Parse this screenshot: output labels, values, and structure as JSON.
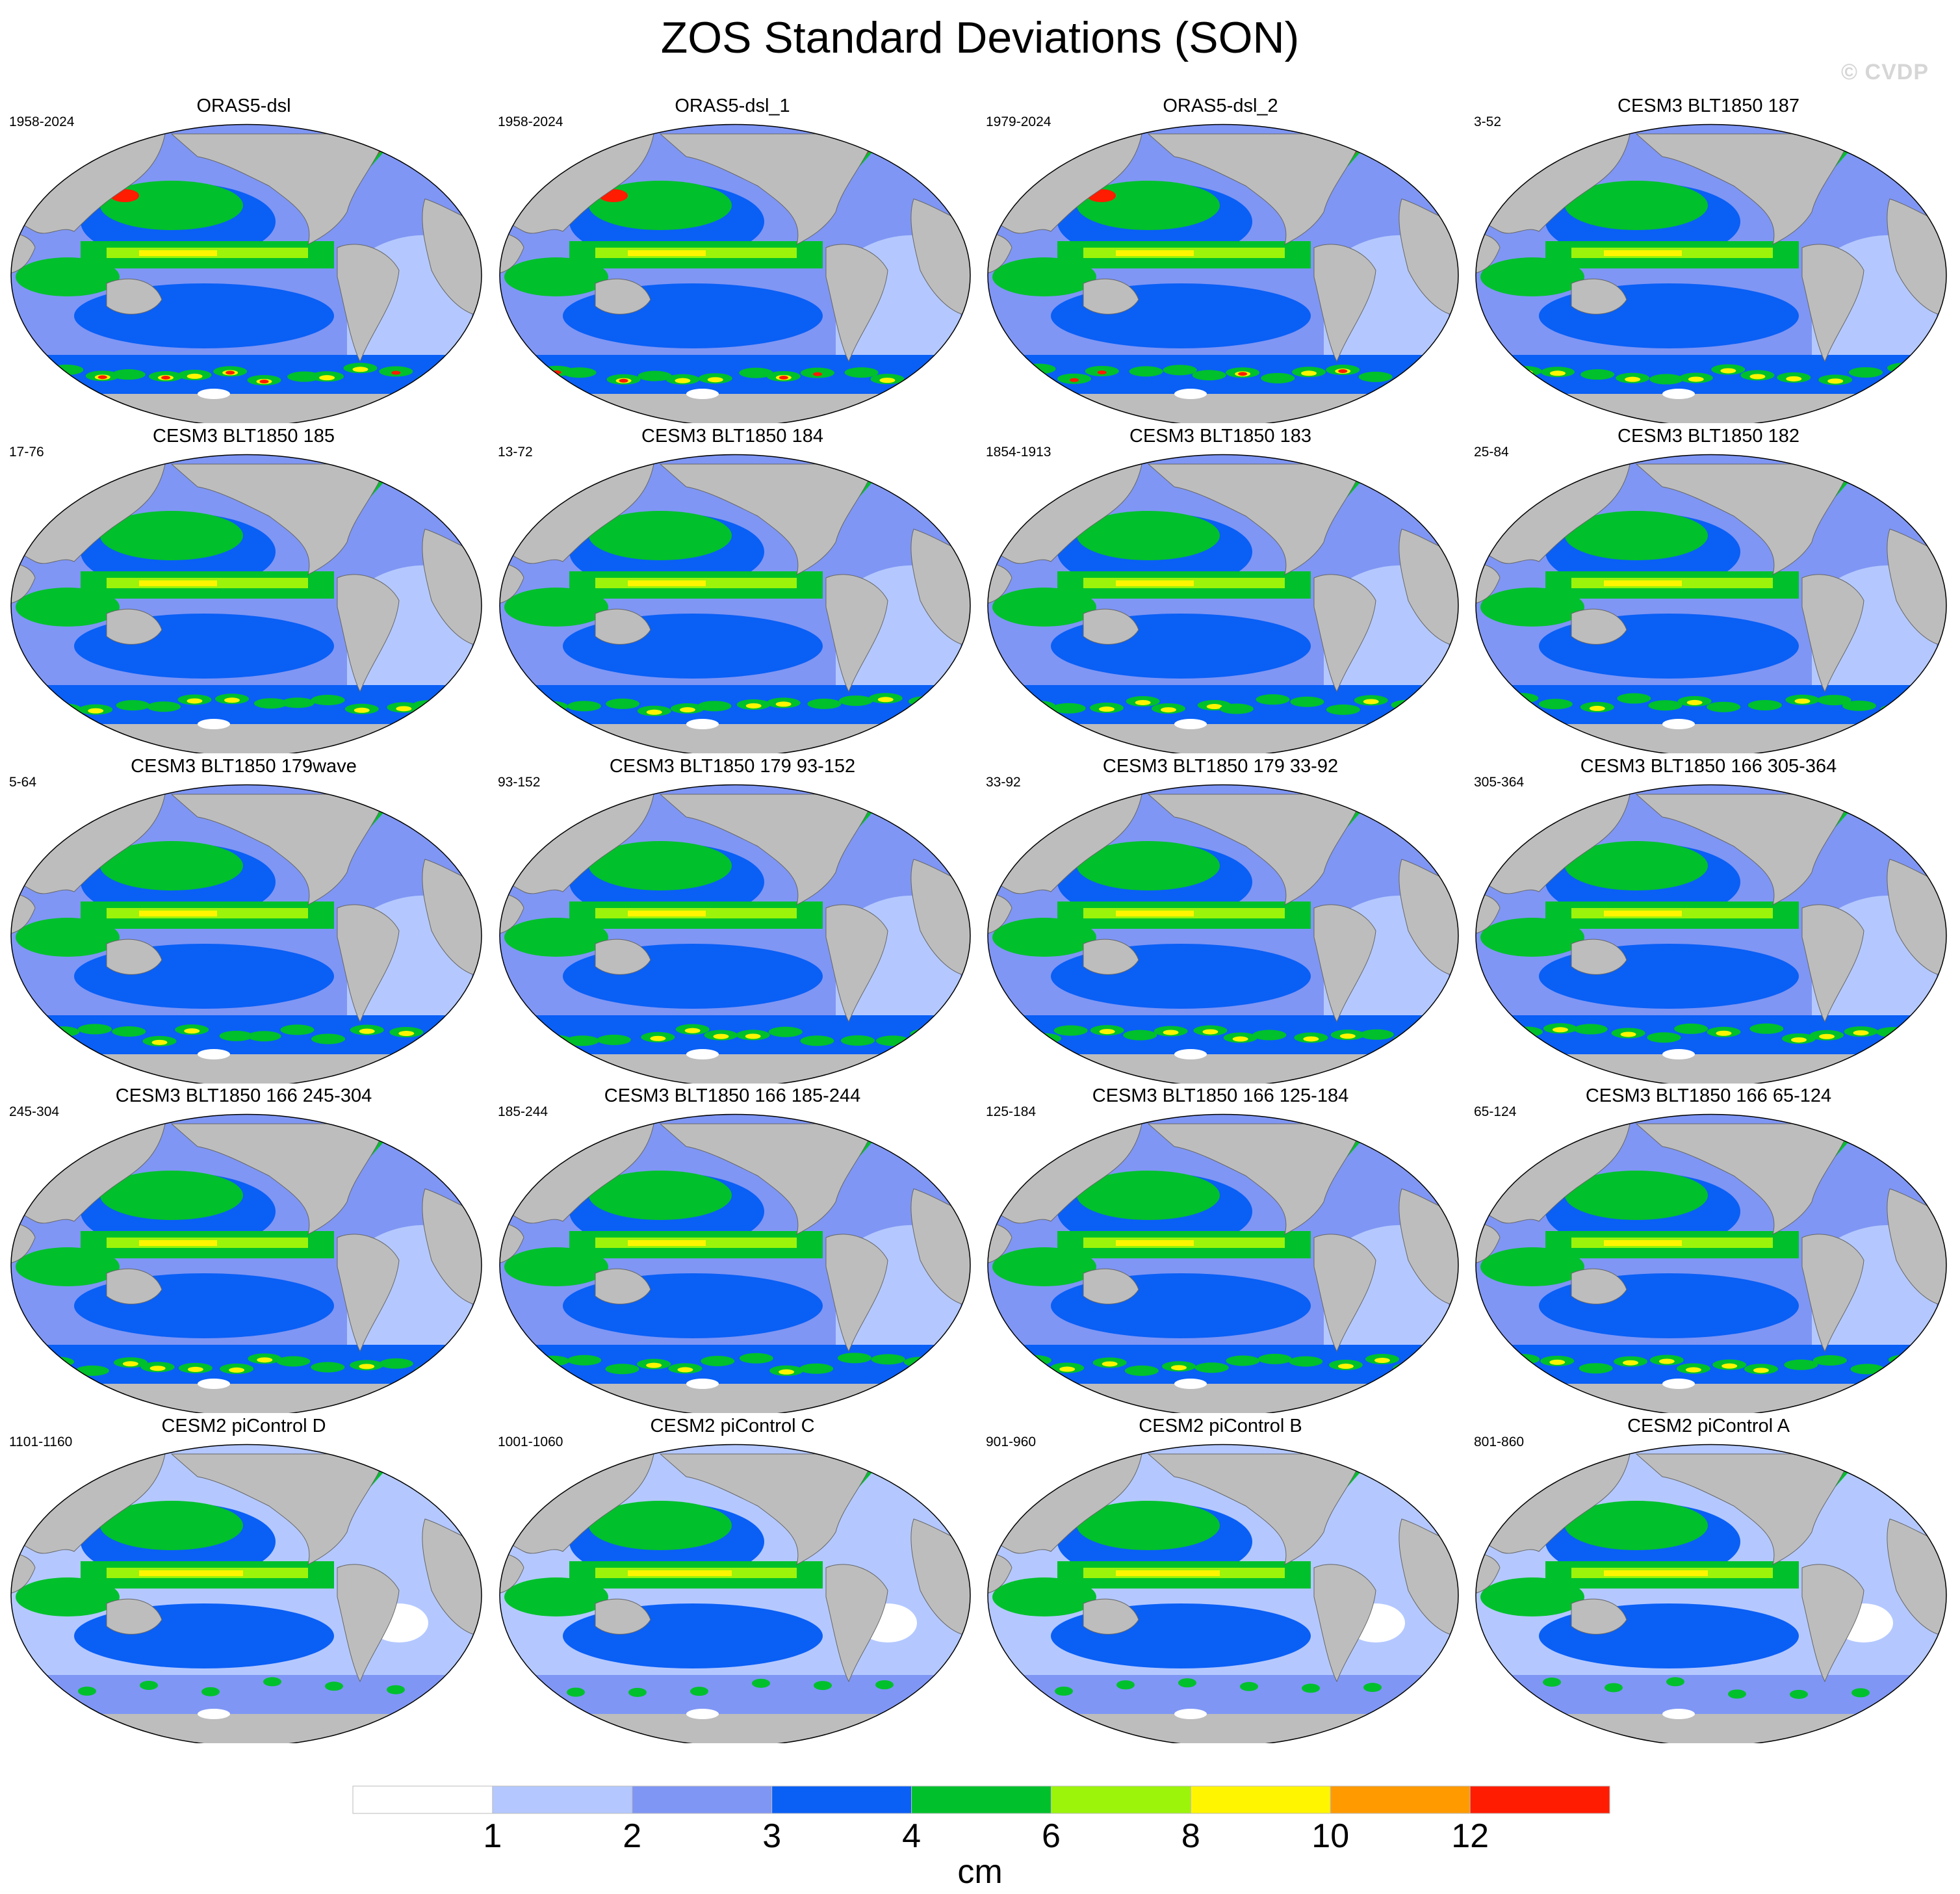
{
  "title": "ZOS Standard Deviations (SON)",
  "watermark": "© CVDP",
  "colorbar": {
    "colors": [
      "#ffffff",
      "#b4c8ff",
      "#7f96f4",
      "#0a5ff5",
      "#00c02c",
      "#9bf40a",
      "#fff500",
      "#ff9a00",
      "#ff1c00"
    ],
    "ticks": [
      "1",
      "2",
      "3",
      "4",
      "6",
      "8",
      "10",
      "12"
    ],
    "units": "cm"
  },
  "chart_data": {
    "type": "heatmap",
    "projection": "robinson (pacific-centered)",
    "variable": "ZOS standard deviation",
    "season": "SON",
    "units": "cm",
    "levels": [
      1,
      2,
      3,
      4,
      6,
      8,
      10,
      12
    ],
    "panels": [
      {
        "name": "ORAS5-dsl",
        "years": "1958-2024"
      },
      {
        "name": "ORAS5-dsl_1",
        "years": "1958-2024"
      },
      {
        "name": "ORAS5-dsl_2",
        "years": "1979-2024"
      },
      {
        "name": "CESM3 BLT1850 187",
        "years": "3-52"
      },
      {
        "name": "CESM3 BLT1850 185",
        "years": "17-76"
      },
      {
        "name": "CESM3 BLT1850 184",
        "years": "13-72"
      },
      {
        "name": "CESM3 BLT1850 183",
        "years": "1854-1913"
      },
      {
        "name": "CESM3 BLT1850 182",
        "years": "25-84"
      },
      {
        "name": "CESM3 BLT1850 179wave",
        "years": "5-64"
      },
      {
        "name": "CESM3 BLT1850 179 93-152",
        "years": "93-152"
      },
      {
        "name": "CESM3 BLT1850 179 33-92",
        "years": "33-92"
      },
      {
        "name": "CESM3 BLT1850 166 305-364",
        "years": "305-364"
      },
      {
        "name": "CESM3 BLT1850 166 245-304",
        "years": "245-304"
      },
      {
        "name": "CESM3 BLT1850 166 185-244",
        "years": "185-244"
      },
      {
        "name": "CESM3 BLT1850 166 125-184",
        "years": "125-184"
      },
      {
        "name": "CESM3 BLT1850 166 65-124",
        "years": "65-124"
      },
      {
        "name": "CESM2 piControl D",
        "years": "1101-1160"
      },
      {
        "name": "CESM2 piControl C",
        "years": "1001-1060"
      },
      {
        "name": "CESM2 piControl B",
        "years": "901-960"
      },
      {
        "name": "CESM2 piControl A",
        "years": "801-860"
      }
    ]
  }
}
